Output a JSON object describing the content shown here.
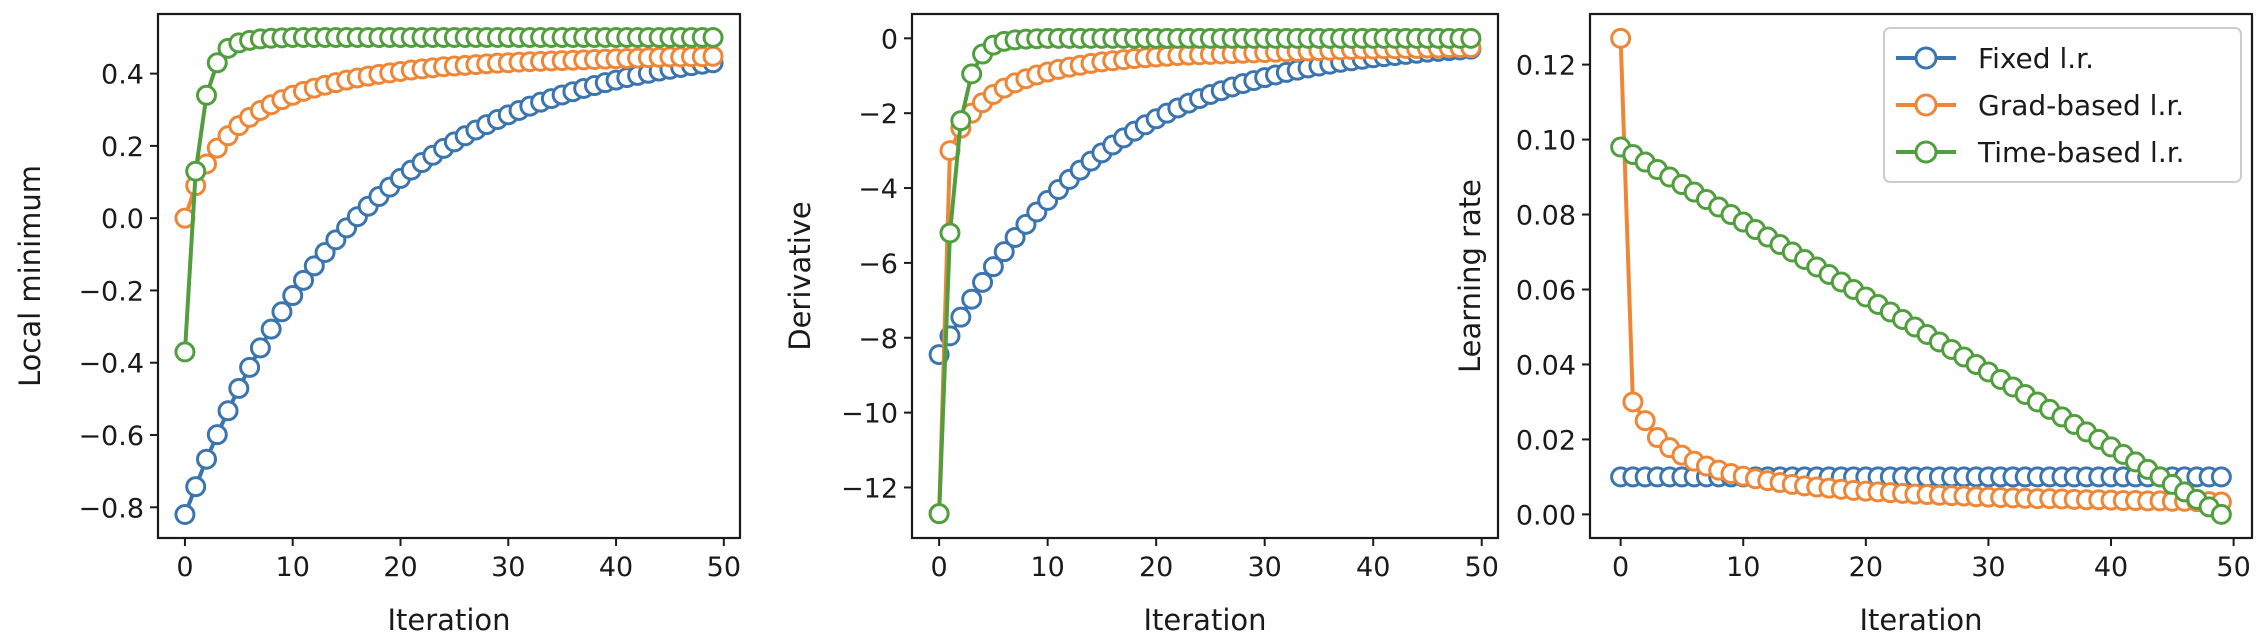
{
  "colors": {
    "fixed": "#3b75af",
    "grad": "#ef8636",
    "time": "#519e3e",
    "axis": "#1a1a1a",
    "marker_fill": "#ffffff"
  },
  "chart_data": [
    {
      "type": "line",
      "xlabel": "Iteration",
      "ylabel": "Local minimum",
      "xlim": [
        -2.5,
        51.5
      ],
      "ylim": [
        -0.885,
        0.565
      ],
      "xticks": [
        0,
        10,
        20,
        30,
        40,
        50
      ],
      "xtick_labels": [
        "0",
        "10",
        "20",
        "30",
        "40",
        "50"
      ],
      "yticks": [
        -0.8,
        -0.6,
        -0.4,
        -0.2,
        0.0,
        0.2,
        0.4
      ],
      "ytick_labels": [
        "−0.8",
        "−0.6",
        "−0.4",
        "−0.2",
        "0.0",
        "0.2",
        "0.4"
      ],
      "grid": false,
      "x": [
        0,
        1,
        2,
        3,
        4,
        5,
        6,
        7,
        8,
        9,
        10,
        11,
        12,
        13,
        14,
        15,
        16,
        17,
        18,
        19,
        20,
        21,
        22,
        23,
        24,
        25,
        26,
        27,
        28,
        29,
        30,
        31,
        32,
        33,
        34,
        35,
        36,
        37,
        38,
        39,
        40,
        41,
        42,
        43,
        44,
        45,
        46,
        47,
        48,
        49
      ],
      "series": [
        {
          "name": "Fixed l.r.",
          "color_key": "fixed",
          "values": [
            -0.82,
            -0.743,
            -0.667,
            -0.599,
            -0.533,
            -0.471,
            -0.413,
            -0.359,
            -0.307,
            -0.259,
            -0.214,
            -0.172,
            -0.132,
            -0.095,
            -0.06,
            -0.027,
            0.004,
            0.033,
            0.06,
            0.086,
            0.11,
            0.133,
            0.154,
            0.174,
            0.193,
            0.211,
            0.228,
            0.244,
            0.259,
            0.273,
            0.286,
            0.298,
            0.31,
            0.321,
            0.331,
            0.341,
            0.35,
            0.359,
            0.367,
            0.375,
            0.382,
            0.389,
            0.395,
            0.401,
            0.407,
            0.412,
            0.417,
            0.422,
            0.426,
            0.43
          ]
        },
        {
          "name": "Grad-based l.r.",
          "color_key": "grad",
          "values": [
            0.0,
            0.09,
            0.15,
            0.194,
            0.228,
            0.256,
            0.279,
            0.298,
            0.314,
            0.328,
            0.34,
            0.351,
            0.36,
            0.368,
            0.375,
            0.382,
            0.388,
            0.393,
            0.398,
            0.402,
            0.406,
            0.41,
            0.413,
            0.416,
            0.419,
            0.421,
            0.423,
            0.425,
            0.427,
            0.429,
            0.43,
            0.432,
            0.433,
            0.434,
            0.435,
            0.436,
            0.437,
            0.438,
            0.439,
            0.44,
            0.441,
            0.442,
            0.443,
            0.444,
            0.445,
            0.446,
            0.446,
            0.447,
            0.447,
            0.448
          ]
        },
        {
          "name": "Time-based l.r.",
          "color_key": "time",
          "values": [
            -0.37,
            0.13,
            0.34,
            0.43,
            0.47,
            0.485,
            0.492,
            0.496,
            0.498,
            0.499,
            0.5,
            0.5,
            0.5,
            0.5,
            0.5,
            0.5,
            0.5,
            0.5,
            0.5,
            0.5,
            0.5,
            0.5,
            0.5,
            0.5,
            0.5,
            0.5,
            0.5,
            0.5,
            0.5,
            0.5,
            0.5,
            0.5,
            0.5,
            0.5,
            0.5,
            0.5,
            0.5,
            0.5,
            0.5,
            0.5,
            0.5,
            0.5,
            0.5,
            0.5,
            0.5,
            0.5,
            0.5,
            0.5,
            0.5,
            0.5
          ]
        }
      ]
    },
    {
      "type": "line",
      "xlabel": "Iteration",
      "ylabel": "Derivative",
      "xlim": [
        -2.5,
        51.5
      ],
      "ylim": [
        -13.35,
        0.65
      ],
      "xticks": [
        0,
        10,
        20,
        30,
        40,
        50
      ],
      "xtick_labels": [
        "0",
        "10",
        "20",
        "30",
        "40",
        "50"
      ],
      "yticks": [
        -12,
        -10,
        -8,
        -6,
        -4,
        -2,
        0
      ],
      "ytick_labels": [
        "−12",
        "−10",
        "−8",
        "−6",
        "−4",
        "−2",
        "0"
      ],
      "grid": false,
      "x": [
        0,
        1,
        2,
        3,
        4,
        5,
        6,
        7,
        8,
        9,
        10,
        11,
        12,
        13,
        14,
        15,
        16,
        17,
        18,
        19,
        20,
        21,
        22,
        23,
        24,
        25,
        26,
        27,
        28,
        29,
        30,
        31,
        32,
        33,
        34,
        35,
        36,
        37,
        38,
        39,
        40,
        41,
        42,
        43,
        44,
        45,
        46,
        47,
        48,
        49
      ],
      "series": [
        {
          "name": "Fixed l.r.",
          "color_key": "fixed",
          "values": [
            -8.45,
            -7.95,
            -7.45,
            -6.97,
            -6.52,
            -6.1,
            -5.7,
            -5.32,
            -4.97,
            -4.64,
            -4.33,
            -4.04,
            -3.77,
            -3.52,
            -3.28,
            -3.06,
            -2.85,
            -2.66,
            -2.48,
            -2.31,
            -2.15,
            -2.0,
            -1.86,
            -1.73,
            -1.61,
            -1.5,
            -1.4,
            -1.3,
            -1.21,
            -1.13,
            -1.05,
            -0.98,
            -0.91,
            -0.85,
            -0.79,
            -0.74,
            -0.69,
            -0.64,
            -0.6,
            -0.56,
            -0.52,
            -0.49,
            -0.46,
            -0.43,
            -0.4,
            -0.37,
            -0.35,
            -0.33,
            -0.31,
            -0.29
          ]
        },
        {
          "name": "Grad-based l.r.",
          "color_key": "grad",
          "values": [
            -12.7,
            -3.0,
            -2.4,
            -2.0,
            -1.72,
            -1.5,
            -1.33,
            -1.19,
            -1.08,
            -0.98,
            -0.9,
            -0.83,
            -0.77,
            -0.72,
            -0.67,
            -0.63,
            -0.6,
            -0.57,
            -0.54,
            -0.52,
            -0.5,
            -0.48,
            -0.46,
            -0.45,
            -0.44,
            -0.43,
            -0.42,
            -0.41,
            -0.4,
            -0.39,
            -0.38,
            -0.37,
            -0.36,
            -0.35,
            -0.34,
            -0.33,
            -0.32,
            -0.31,
            -0.3,
            -0.29,
            -0.29,
            -0.28,
            -0.28,
            -0.27,
            -0.27,
            -0.26,
            -0.26,
            -0.25,
            -0.25,
            -0.25
          ]
        },
        {
          "name": "Time-based l.r.",
          "color_key": "time",
          "values": [
            -12.7,
            -5.2,
            -2.2,
            -0.95,
            -0.42,
            -0.18,
            -0.08,
            -0.04,
            -0.02,
            -0.01,
            0,
            0,
            0,
            0,
            0,
            0,
            0,
            0,
            0,
            0,
            0,
            0,
            0,
            0,
            0,
            0,
            0,
            0,
            0,
            0,
            0,
            0,
            0,
            0,
            0,
            0,
            0,
            0,
            0,
            0,
            0,
            0,
            0,
            0,
            0,
            0,
            0,
            0,
            0,
            0
          ]
        }
      ]
    },
    {
      "type": "line",
      "xlabel": "Iteration",
      "ylabel": "Learning rate",
      "xlim": [
        -2.5,
        51.5
      ],
      "ylim": [
        -0.0063,
        0.1335
      ],
      "xticks": [
        0,
        10,
        20,
        30,
        40,
        50
      ],
      "xtick_labels": [
        "0",
        "10",
        "20",
        "30",
        "40",
        "50"
      ],
      "yticks": [
        0.0,
        0.02,
        0.04,
        0.06,
        0.08,
        0.1,
        0.12
      ],
      "ytick_labels": [
        "0.00",
        "0.02",
        "0.04",
        "0.06",
        "0.08",
        "0.10",
        "0.12"
      ],
      "grid": false,
      "legend": "upper right",
      "x": [
        0,
        1,
        2,
        3,
        4,
        5,
        6,
        7,
        8,
        9,
        10,
        11,
        12,
        13,
        14,
        15,
        16,
        17,
        18,
        19,
        20,
        21,
        22,
        23,
        24,
        25,
        26,
        27,
        28,
        29,
        30,
        31,
        32,
        33,
        34,
        35,
        36,
        37,
        38,
        39,
        40,
        41,
        42,
        43,
        44,
        45,
        46,
        47,
        48,
        49
      ],
      "series": [
        {
          "name": "Fixed l.r.",
          "color_key": "fixed",
          "values": [
            0.01,
            0.01,
            0.01,
            0.01,
            0.01,
            0.01,
            0.01,
            0.01,
            0.01,
            0.01,
            0.01,
            0.01,
            0.01,
            0.01,
            0.01,
            0.01,
            0.01,
            0.01,
            0.01,
            0.01,
            0.01,
            0.01,
            0.01,
            0.01,
            0.01,
            0.01,
            0.01,
            0.01,
            0.01,
            0.01,
            0.01,
            0.01,
            0.01,
            0.01,
            0.01,
            0.01,
            0.01,
            0.01,
            0.01,
            0.01,
            0.01,
            0.01,
            0.01,
            0.01,
            0.01,
            0.01,
            0.01,
            0.01,
            0.01,
            0.01
          ]
        },
        {
          "name": "Grad-based l.r.",
          "color_key": "grad",
          "values": [
            0.127,
            0.03,
            0.025,
            0.0205,
            0.0178,
            0.0158,
            0.0142,
            0.0129,
            0.0118,
            0.0109,
            0.0102,
            0.0095,
            0.009,
            0.0085,
            0.008,
            0.0076,
            0.0073,
            0.007,
            0.0067,
            0.0064,
            0.0062,
            0.006,
            0.0058,
            0.0056,
            0.0054,
            0.0053,
            0.0051,
            0.005,
            0.0049,
            0.0047,
            0.0046,
            0.0045,
            0.0044,
            0.0043,
            0.0042,
            0.0042,
            0.0041,
            0.004,
            0.0039,
            0.0039,
            0.0038,
            0.0037,
            0.0037,
            0.0036,
            0.0036,
            0.0035,
            0.0035,
            0.0034,
            0.0034,
            0.0033
          ]
        },
        {
          "name": "Time-based l.r.",
          "color_key": "time",
          "values": [
            0.098,
            0.096,
            0.094,
            0.092,
            0.09,
            0.088,
            0.086,
            0.084,
            0.082,
            0.08,
            0.078,
            0.076,
            0.074,
            0.072,
            0.07,
            0.068,
            0.066,
            0.064,
            0.062,
            0.06,
            0.058,
            0.056,
            0.054,
            0.052,
            0.05,
            0.048,
            0.046,
            0.044,
            0.042,
            0.04,
            0.038,
            0.036,
            0.034,
            0.032,
            0.03,
            0.028,
            0.026,
            0.024,
            0.022,
            0.02,
            0.018,
            0.016,
            0.014,
            0.012,
            0.01,
            0.008,
            0.006,
            0.004,
            0.002,
            0.0
          ]
        }
      ]
    }
  ]
}
